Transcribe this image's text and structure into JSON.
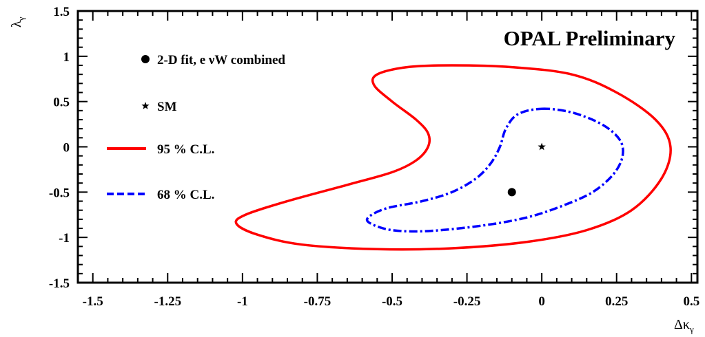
{
  "chart_data": {
    "type": "line",
    "title": "OPAL Preliminary",
    "xlabel": "Δκ",
    "xlabel_sub": "γ",
    "ylabel": "λ",
    "ylabel_sub": "γ",
    "xlim": [
      -1.55,
      0.52
    ],
    "ylim": [
      -1.5,
      1.5
    ],
    "x_ticks": [
      -1.5,
      -1.25,
      -1,
      -0.75,
      -0.5,
      -0.25,
      0,
      0.25,
      0.5
    ],
    "x_tick_labels": [
      "-1.5",
      "-1.25",
      "-1",
      "-0.75",
      "-0.5",
      "-0.25",
      "0",
      "0.25",
      "0.5"
    ],
    "y_ticks": [
      -1.5,
      -1,
      -0.5,
      0,
      0.5,
      1,
      1.5
    ],
    "y_tick_labels": [
      "-1.5",
      "-1",
      "-0.5",
      "0",
      "0.5",
      "1",
      "1.5"
    ],
    "grid": false,
    "legend_position": "top-left",
    "series": [
      {
        "name": "95 % C.L.",
        "style": "solid",
        "color": "#ff0000",
        "points": [
          [
            -0.3,
            0.9
          ],
          [
            -0.1,
            0.88
          ],
          [
            0.1,
            0.8
          ],
          [
            0.25,
            0.6
          ],
          [
            0.38,
            0.3
          ],
          [
            0.43,
            0.0
          ],
          [
            0.4,
            -0.35
          ],
          [
            0.3,
            -0.7
          ],
          [
            0.15,
            -0.92
          ],
          [
            -0.05,
            -1.05
          ],
          [
            -0.3,
            -1.12
          ],
          [
            -0.55,
            -1.13
          ],
          [
            -0.8,
            -1.08
          ],
          [
            -0.95,
            -0.97
          ],
          [
            -1.02,
            -0.85
          ],
          [
            -0.99,
            -0.75
          ],
          [
            -0.85,
            -0.6
          ],
          [
            -0.65,
            -0.42
          ],
          [
            -0.5,
            -0.28
          ],
          [
            -0.42,
            -0.15
          ],
          [
            -0.38,
            0.0
          ],
          [
            -0.38,
            0.15
          ],
          [
            -0.42,
            0.3
          ],
          [
            -0.5,
            0.5
          ],
          [
            -0.56,
            0.68
          ],
          [
            -0.55,
            0.8
          ],
          [
            -0.45,
            0.88
          ],
          [
            -0.3,
            0.9
          ]
        ]
      },
      {
        "name": "68 % C.L.",
        "style": "dashed",
        "color": "#0000ff",
        "points": [
          [
            0.0,
            0.42
          ],
          [
            0.1,
            0.38
          ],
          [
            0.2,
            0.25
          ],
          [
            0.26,
            0.08
          ],
          [
            0.27,
            -0.1
          ],
          [
            0.24,
            -0.3
          ],
          [
            0.17,
            -0.5
          ],
          [
            0.07,
            -0.65
          ],
          [
            -0.05,
            -0.78
          ],
          [
            -0.2,
            -0.87
          ],
          [
            -0.38,
            -0.93
          ],
          [
            -0.5,
            -0.92
          ],
          [
            -0.57,
            -0.85
          ],
          [
            -0.58,
            -0.78
          ],
          [
            -0.52,
            -0.68
          ],
          [
            -0.4,
            -0.6
          ],
          [
            -0.3,
            -0.5
          ],
          [
            -0.22,
            -0.35
          ],
          [
            -0.17,
            -0.18
          ],
          [
            -0.14,
            0.0
          ],
          [
            -0.12,
            0.2
          ],
          [
            -0.08,
            0.36
          ],
          [
            0.0,
            0.42
          ]
        ]
      },
      {
        "name": "2-D fit, e νW combined",
        "type": "marker",
        "marker": "circle",
        "color": "#000000",
        "points": [
          [
            -0.1,
            -0.5
          ]
        ]
      },
      {
        "name": "SM",
        "type": "marker",
        "marker": "star",
        "color": "#000000",
        "points": [
          [
            0,
            0
          ]
        ]
      }
    ],
    "legend": [
      {
        "label": "2-D fit, e νW combined",
        "symbol": "circle"
      },
      {
        "label": "SM",
        "symbol": "star"
      },
      {
        "label": "95 % C.L.",
        "symbol": "solid-line",
        "color": "#ff0000"
      },
      {
        "label": "68 % C.L.",
        "symbol": "dashed-line",
        "color": "#0000ff"
      }
    ]
  }
}
